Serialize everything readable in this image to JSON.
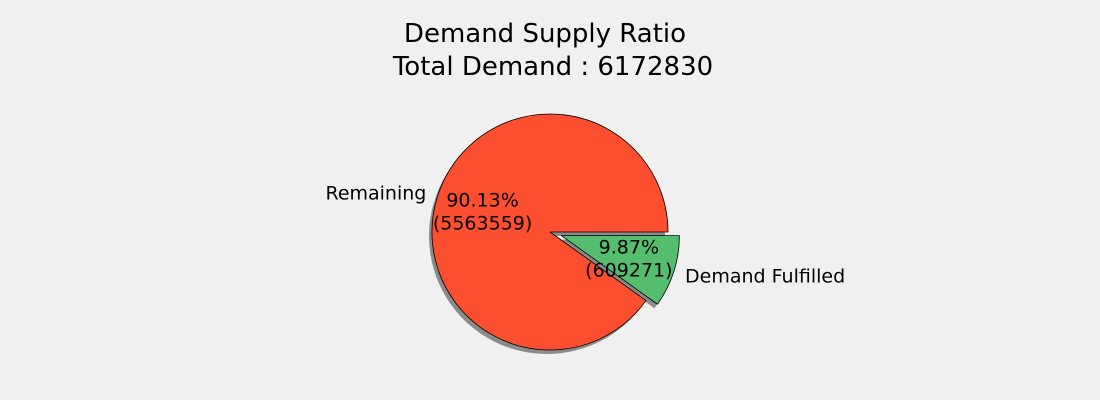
{
  "chart_data": {
    "type": "pie",
    "title": "Demand Supply Ratio",
    "subtitle": "Total Demand : 6172830",
    "start_angle_deg": 0,
    "direction": "clockwise",
    "shadow": true,
    "slices": [
      {
        "label": "Demand Fulfilled",
        "value": 609271,
        "percent_label": "9.87%",
        "value_label": "(609271)",
        "color": "#55bd6e",
        "exploded": true
      },
      {
        "label": "Remaining",
        "value": 5563559,
        "percent_label": "90.13%",
        "value_label": "(5563559)",
        "color": "#fc4f30",
        "exploded": false
      }
    ]
  }
}
